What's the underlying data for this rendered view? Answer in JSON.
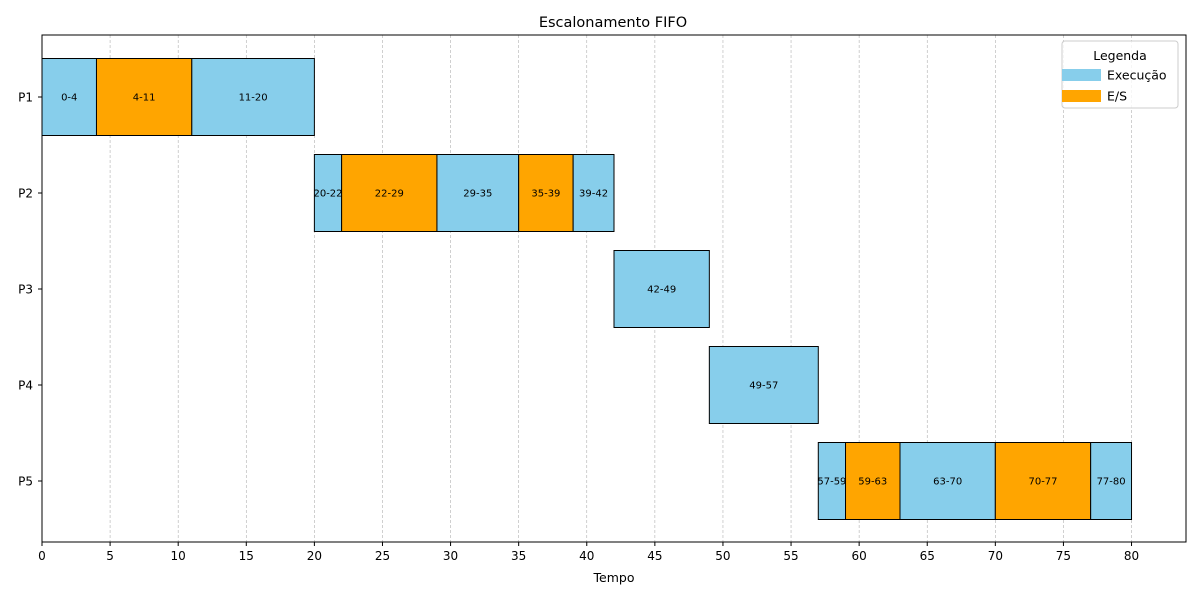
{
  "chart_data": {
    "type": "gantt",
    "title": "Escalonamento FIFO",
    "xlabel": "Tempo",
    "ylabel": "",
    "xlim": [
      0,
      84
    ],
    "xticks": [
      0,
      5,
      10,
      15,
      20,
      25,
      30,
      35,
      40,
      45,
      50,
      55,
      60,
      65,
      70,
      75,
      80
    ],
    "grid": "vertical dashed",
    "legend": {
      "title": "Legenda",
      "placement": "top-right",
      "entries": [
        {
          "key": "exec",
          "label": "Execução",
          "color": "#87ceeb"
        },
        {
          "key": "io",
          "label": "E/S",
          "color": "#ffa500"
        }
      ]
    },
    "processes": [
      "P1",
      "P2",
      "P3",
      "P4",
      "P5"
    ],
    "segments": [
      {
        "process": "P1",
        "start": 0,
        "end": 4,
        "kind": "exec",
        "label": "0-4"
      },
      {
        "process": "P1",
        "start": 4,
        "end": 11,
        "kind": "io",
        "label": "4-11"
      },
      {
        "process": "P1",
        "start": 11,
        "end": 20,
        "kind": "exec",
        "label": "11-20"
      },
      {
        "process": "P2",
        "start": 20,
        "end": 22,
        "kind": "exec",
        "label": "20-22"
      },
      {
        "process": "P2",
        "start": 22,
        "end": 29,
        "kind": "io",
        "label": "22-29"
      },
      {
        "process": "P2",
        "start": 29,
        "end": 35,
        "kind": "exec",
        "label": "29-35"
      },
      {
        "process": "P2",
        "start": 35,
        "end": 39,
        "kind": "io",
        "label": "35-39"
      },
      {
        "process": "P2",
        "start": 39,
        "end": 42,
        "kind": "exec",
        "label": "39-42"
      },
      {
        "process": "P3",
        "start": 42,
        "end": 49,
        "kind": "exec",
        "label": "42-49"
      },
      {
        "process": "P4",
        "start": 49,
        "end": 57,
        "kind": "exec",
        "label": "49-57"
      },
      {
        "process": "P5",
        "start": 57,
        "end": 59,
        "kind": "exec",
        "label": "57-59"
      },
      {
        "process": "P5",
        "start": 59,
        "end": 63,
        "kind": "io",
        "label": "59-63"
      },
      {
        "process": "P5",
        "start": 63,
        "end": 70,
        "kind": "exec",
        "label": "63-70"
      },
      {
        "process": "P5",
        "start": 70,
        "end": 77,
        "kind": "io",
        "label": "70-77"
      },
      {
        "process": "P5",
        "start": 77,
        "end": 80,
        "kind": "exec",
        "label": "77-80"
      }
    ]
  }
}
